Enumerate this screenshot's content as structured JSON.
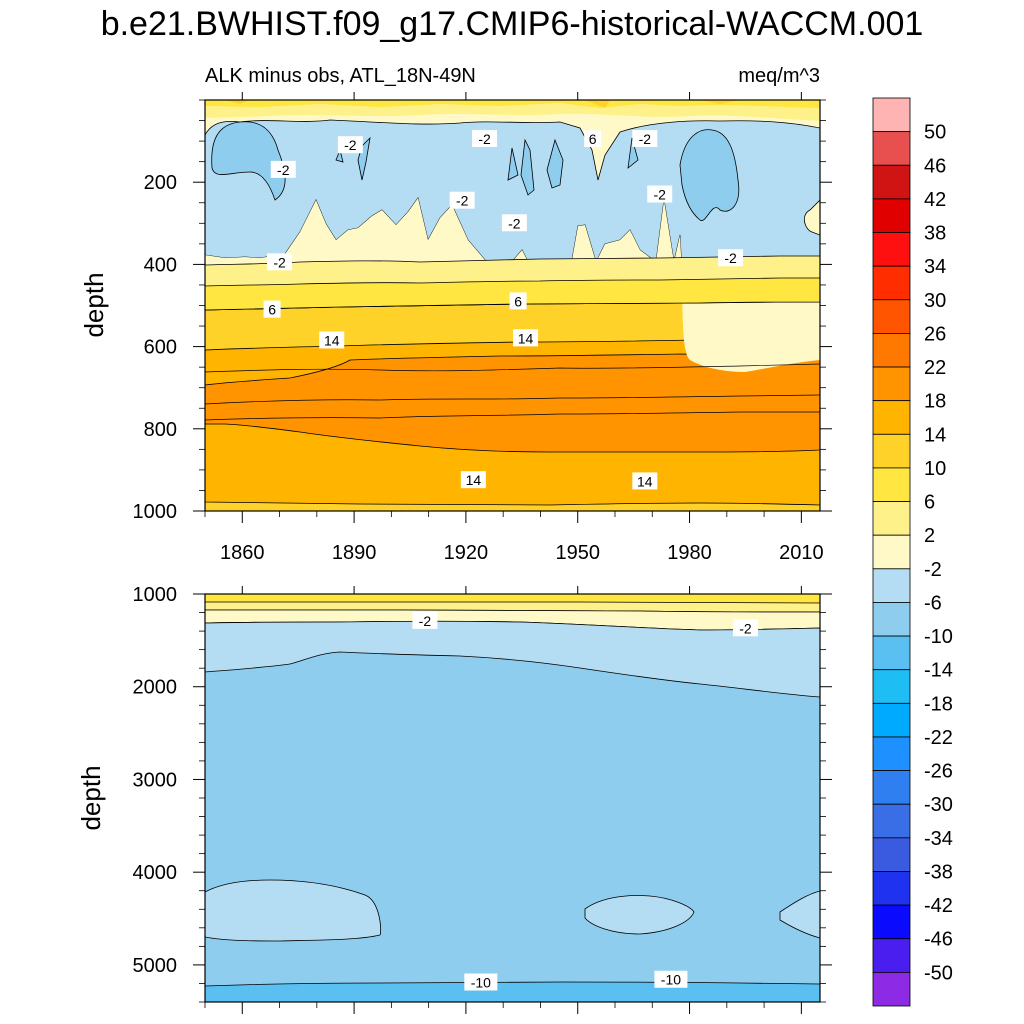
{
  "figure": {
    "title": "b.e21.BWHIST.f09_g17.CMIP6-historical-WACCM.001"
  },
  "palette": {
    "shallow_bg": "#fff9c8",
    "band_2_6": "#fff18a",
    "band_6_10": "#ffe640",
    "band_10_14": "#ffd22a",
    "band_14_18": "#ffb400",
    "band_18_22": "#ff9400",
    "band_m2_m6": "#b4dcf2",
    "band_m6_m10": "#8ecdee",
    "band_m10_m14": "#5ac0f2"
  },
  "chart_data": [
    {
      "type": "heatmap",
      "panel": "upper",
      "title_left": "ALK minus obs, ATL_18N-49N",
      "title_right": "meq/m^3",
      "ylabel": "depth",
      "xlabel": "",
      "xlim": [
        1850,
        2015
      ],
      "ylim": [
        1000,
        0
      ],
      "xticks": [
        1860,
        1890,
        1920,
        1950,
        1980,
        2010
      ],
      "yticks": [
        200,
        400,
        600,
        800,
        1000
      ],
      "contour_labels": [
        {
          "text": "-2",
          "x": 1889,
          "y": 110
        },
        {
          "text": "-2",
          "x": 1925,
          "y": 95
        },
        {
          "text": "6",
          "x": 1954,
          "y": 95
        },
        {
          "text": "-2",
          "x": 1968,
          "y": 95
        },
        {
          "text": "-2",
          "x": 1871,
          "y": 170
        },
        {
          "text": "-2",
          "x": 1919,
          "y": 245
        },
        {
          "text": "-2",
          "x": 1972,
          "y": 230
        },
        {
          "text": "-2",
          "x": 1933,
          "y": 300
        },
        {
          "text": "-2",
          "x": 1991,
          "y": 385
        },
        {
          "text": "-2",
          "x": 1870,
          "y": 395
        },
        {
          "text": "6",
          "x": 1868,
          "y": 510
        },
        {
          "text": "6",
          "x": 1934,
          "y": 490
        },
        {
          "text": "14",
          "x": 1884,
          "y": 585
        },
        {
          "text": "14",
          "x": 1936,
          "y": 580
        },
        {
          "text": "14",
          "x": 1922,
          "y": 925
        },
        {
          "text": "14",
          "x": 1968,
          "y": 928
        }
      ]
    },
    {
      "type": "heatmap",
      "panel": "lower",
      "ylabel": "depth",
      "xlabel": "",
      "xlim": [
        1850,
        2015
      ],
      "ylim": [
        5400,
        1000
      ],
      "xticks": [
        1860,
        1890,
        1920,
        1950,
        1980,
        2010
      ],
      "yticks": [
        1000,
        2000,
        3000,
        4000,
        5000
      ],
      "contour_labels": [
        {
          "text": "-2",
          "x": 1909,
          "y": 1290
        },
        {
          "text": "-2",
          "x": 1995,
          "y": 1370
        },
        {
          "text": "-10",
          "x": 1924,
          "y": 5190
        },
        {
          "text": "-10",
          "x": 1975,
          "y": 5160
        }
      ]
    }
  ],
  "colorbar": {
    "labels": [
      "50",
      "46",
      "42",
      "38",
      "34",
      "30",
      "26",
      "22",
      "18",
      "14",
      "10",
      "6",
      "2",
      "-2",
      "-6",
      "-10",
      "-14",
      "-18",
      "-22",
      "-26",
      "-30",
      "-34",
      "-38",
      "-42",
      "-46",
      "-50"
    ],
    "colors": [
      "#ffb4b4",
      "#e85050",
      "#d01414",
      "#e00000",
      "#ff1010",
      "#ff2d00",
      "#ff5500",
      "#ff7800",
      "#ff9400",
      "#ffb400",
      "#ffd22a",
      "#ffe640",
      "#fff18a",
      "#fff9c8",
      "#b4dcf2",
      "#8ecdee",
      "#5ac0f2",
      "#1ebef5",
      "#00aaff",
      "#1e90ff",
      "#2f7ff0",
      "#3a6ee6",
      "#3a5ae0",
      "#1e32f0",
      "#0a0aff",
      "#4b1ef0",
      "#8c2ae6"
    ]
  }
}
